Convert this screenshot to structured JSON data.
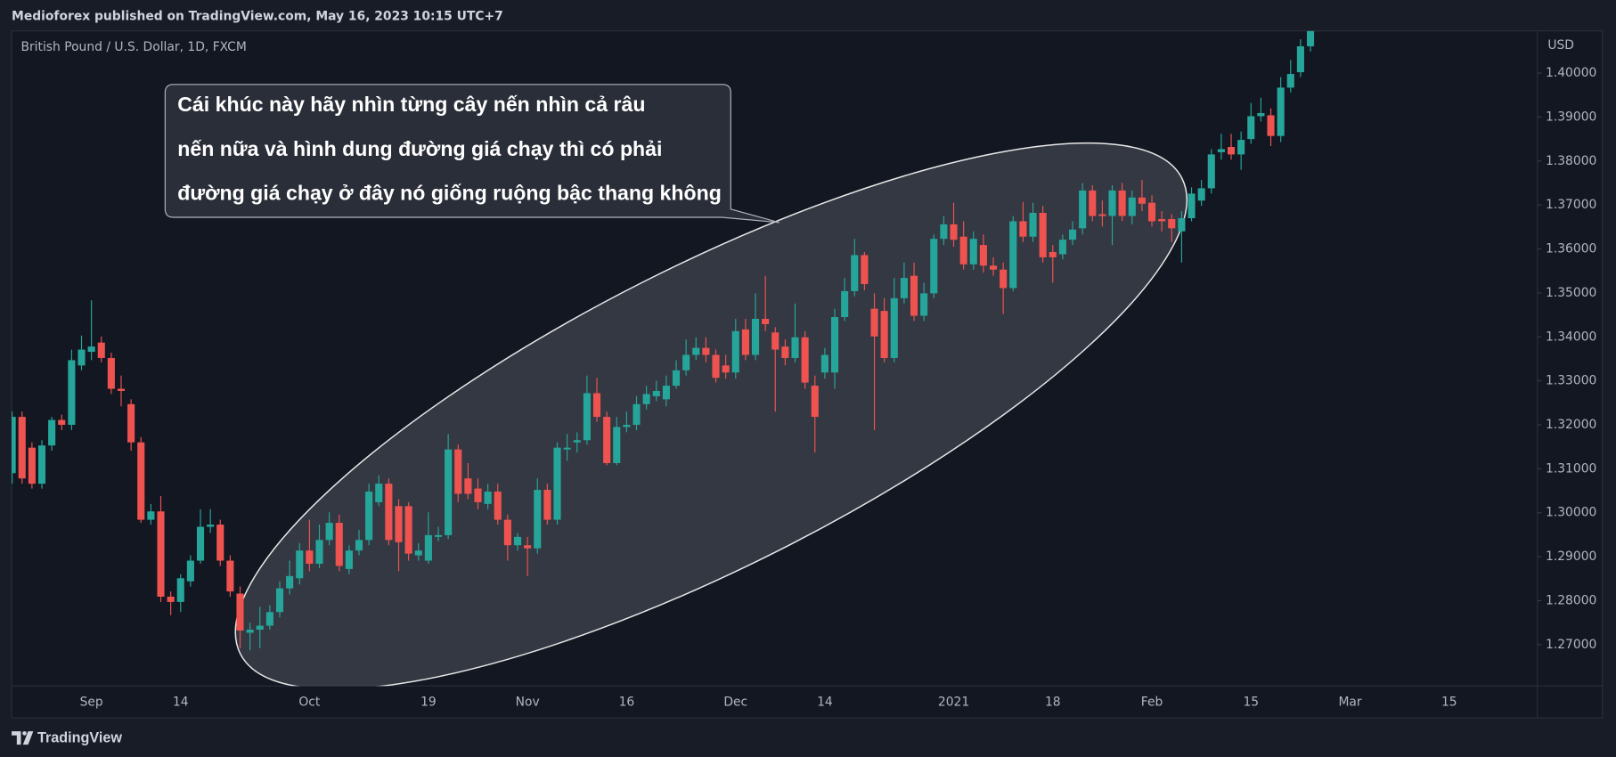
{
  "header": {
    "title": "Medioforex published on TradingView.com, May 16, 2023 10:15 UTC+7"
  },
  "chart_data": {
    "type": "candlestick",
    "title": "British Pound / U.S. Dollar, 1D, FXCM",
    "y_axis_label": "USD",
    "up_color": "#26a69a",
    "down_color": "#ef5350",
    "ylim": [
      1.2606,
      1.4096
    ],
    "yticks": [
      {
        "value": 1.27,
        "label": "1.27000"
      },
      {
        "value": 1.28,
        "label": "1.28000"
      },
      {
        "value": 1.29,
        "label": "1.29000"
      },
      {
        "value": 1.3,
        "label": "1.30000"
      },
      {
        "value": 1.31,
        "label": "1.31000"
      },
      {
        "value": 1.32,
        "label": "1.32000"
      },
      {
        "value": 1.33,
        "label": "1.33000"
      },
      {
        "value": 1.34,
        "label": "1.34000"
      },
      {
        "value": 1.35,
        "label": "1.35000"
      },
      {
        "value": 1.36,
        "label": "1.36000"
      },
      {
        "value": 1.37,
        "label": "1.37000"
      },
      {
        "value": 1.38,
        "label": "1.38000"
      },
      {
        "value": 1.39,
        "label": "1.39000"
      },
      {
        "value": 1.4,
        "label": "1.40000"
      }
    ],
    "categories": [
      null,
      null,
      null,
      null,
      null,
      null,
      null,
      null,
      "Sep",
      null,
      null,
      null,
      null,
      null,
      null,
      null,
      null,
      "14",
      null,
      null,
      null,
      null,
      null,
      null,
      null,
      null,
      null,
      null,
      null,
      null,
      "Oct",
      null,
      null,
      null,
      null,
      null,
      null,
      null,
      null,
      null,
      null,
      null,
      "19",
      null,
      null,
      null,
      null,
      null,
      null,
      null,
      null,
      null,
      "Nov",
      null,
      null,
      null,
      null,
      null,
      null,
      null,
      null,
      null,
      "16",
      null,
      null,
      null,
      null,
      null,
      null,
      null,
      null,
      null,
      null,
      "Dec",
      null,
      null,
      null,
      null,
      null,
      null,
      null,
      null,
      "14",
      null,
      null,
      null,
      null,
      null,
      null,
      null,
      null,
      null,
      null,
      null,
      null,
      "2021",
      null,
      null,
      null,
      null,
      null,
      null,
      null,
      null,
      null,
      "18",
      null,
      null,
      null,
      null,
      null,
      null,
      null,
      null,
      null,
      "Feb",
      null,
      null,
      null,
      null,
      null,
      null,
      null,
      null,
      null,
      "15",
      null,
      null,
      null,
      null,
      null,
      null,
      null,
      null,
      null,
      "Mar",
      null,
      null,
      null,
      null,
      null,
      null,
      null,
      null,
      null,
      "15"
    ],
    "open": [
      1.309,
      1.3218,
      1.3148,
      1.3066,
      1.3153,
      1.3211,
      1.32,
      1.3335,
      1.3366,
      1.3387,
      1.3352,
      1.3282,
      1.3247,
      1.316,
      1.2984,
      1.3003,
      1.2809,
      1.2797,
      1.2844,
      1.2891,
      1.2968,
      1.2973,
      1.2891,
      1.2816,
      1.2727,
      1.2734,
      1.2743,
      1.2774,
      1.2828,
      1.2851,
      1.2914,
      1.2884,
      1.2938,
      1.2977,
      1.2872,
      1.2914,
      1.2938,
      1.3024,
      1.3066,
      1.3015,
      1.3015,
      1.2903,
      1.2891,
      1.2945,
      1.2949,
      1.3144,
      1.3078,
      1.3055,
      1.302,
      1.3048,
      1.2984,
      1.2926,
      1.2926,
      1.2919,
      1.3052,
      1.2984,
      1.3144,
      1.316,
      1.3165,
      1.3272,
      1.3218,
      1.3113,
      1.3195,
      1.32,
      1.3247,
      1.3265,
      1.3258,
      1.3289,
      1.3324,
      1.3359,
      1.3375,
      1.3359,
      1.3335,
      1.3319,
      1.3417,
      1.3359,
      1.3441,
      1.341,
      1.3378,
      1.3352,
      1.3399,
      1.3289,
      1.3319,
      1.3319,
      1.3445,
      1.3504,
      1.3586,
      1.3464,
      1.3459,
      1.3352,
      1.3488,
      1.3539,
      1.3448,
      1.3499,
      1.3623,
      1.3656,
      1.3628,
      1.3565,
      1.3609,
      1.3562,
      1.3553,
      1.3511,
      1.3663,
      1.3628,
      1.3682,
      1.3593,
      1.3588,
      1.3621,
      1.3647,
      1.3733,
      1.3679,
      1.3675,
      1.3733,
      1.3675,
      1.3717,
      1.3705,
      1.3668,
      1.3668,
      1.364,
      1.367,
      1.371,
      1.3738,
      1.382,
      1.3832,
      1.3815,
      1.385,
      1.3902,
      1.3904,
      1.3857,
      1.3967,
      1.4002,
      1.4061,
      null,
      null,
      null,
      null,
      null,
      null,
      null,
      null,
      null,
      null,
      null,
      null,
      null,
      null
    ],
    "high": [
      1.323,
      1.323,
      1.316,
      1.3165,
      1.3218,
      1.3223,
      1.3371,
      1.3403,
      1.3483,
      1.3401,
      1.3364,
      1.3312,
      1.3258,
      1.3172,
      1.302,
      1.3038,
      1.2821,
      1.286,
      1.2903,
      1.3008,
      1.3008,
      1.2984,
      1.2903,
      1.2832,
      1.275,
      1.2786,
      1.279,
      1.2844,
      1.2891,
      1.2931,
      1.2984,
      1.2973,
      1.3001,
      1.2996,
      1.2926,
      1.2961,
      1.3066,
      1.3085,
      1.3078,
      1.3031,
      1.3024,
      1.2931,
      1.3001,
      1.2968,
      1.3179,
      1.3155,
      1.3113,
      1.3078,
      1.3066,
      1.3066,
      1.2996,
      1.2954,
      1.2945,
      1.3078,
      1.3066,
      1.316,
      1.3179,
      1.3183,
      1.3312,
      1.3307,
      1.323,
      1.3218,
      1.323,
      1.3265,
      1.3289,
      1.33,
      1.3312,
      1.3347,
      1.3394,
      1.3399,
      1.3399,
      1.3371,
      1.3359,
      1.3441,
      1.3441,
      1.3499,
      1.3539,
      1.3422,
      1.3394,
      1.3476,
      1.3413,
      1.3312,
      1.3375,
      1.3464,
      1.3534,
      1.3623,
      1.3593,
      1.3499,
      1.3488,
      1.3534,
      1.3569,
      1.3569,
      1.3523,
      1.3633,
      1.3675,
      1.3705,
      1.3663,
      1.364,
      1.3633,
      1.3581,
      1.3569,
      1.3675,
      1.3707,
      1.3705,
      1.3698,
      1.3609,
      1.3633,
      1.3663,
      1.375,
      1.3745,
      1.371,
      1.3745,
      1.375,
      1.3733,
      1.3757,
      1.3722,
      1.3686,
      1.3679,
      1.3686,
      1.374,
      1.3757,
      1.3827,
      1.3862,
      1.3862,
      1.3867,
      1.3932,
      1.3944,
      1.392,
      1.3991,
      1.403,
      1.4077,
      1.4101,
      null,
      null,
      null,
      null,
      null,
      null,
      null,
      null,
      null,
      null,
      null,
      null,
      null,
      null
    ],
    "low": [
      1.3066,
      1.3066,
      1.3055,
      1.3055,
      1.3141,
      1.3188,
      1.3188,
      1.3324,
      1.3347,
      1.3342,
      1.327,
      1.3242,
      1.3141,
      1.2977,
      1.2973,
      1.2797,
      1.2767,
      1.2774,
      1.2832,
      1.2884,
      1.2954,
      1.2879,
      1.2809,
      1.2692,
      1.2687,
      1.2692,
      1.2734,
      1.2762,
      1.2814,
      1.2837,
      1.2867,
      1.2874,
      1.2926,
      1.2867,
      1.286,
      1.2903,
      1.2926,
      1.3015,
      1.2926,
      1.2867,
      1.2891,
      1.2891,
      1.2884,
      1.2935,
      1.294,
      1.3024,
      1.3031,
      1.3008,
      1.3008,
      1.2973,
      1.2891,
      1.2914,
      1.2856,
      1.2907,
      1.2973,
      1.2973,
      1.3118,
      1.3137,
      1.3155,
      1.3207,
      1.3108,
      1.3108,
      1.3183,
      1.3188,
      1.3235,
      1.3254,
      1.3242,
      1.3282,
      1.3312,
      1.3347,
      1.3342,
      1.3296,
      1.3305,
      1.3305,
      1.3347,
      1.3347,
      1.3413,
      1.323,
      1.3335,
      1.3342,
      1.3282,
      1.3137,
      1.3305,
      1.3282,
      1.3436,
      1.3492,
      1.3506,
      1.3188,
      1.3342,
      1.3342,
      1.3476,
      1.3436,
      1.3436,
      1.3488,
      1.3609,
      1.3605,
      1.3553,
      1.3553,
      1.3546,
      1.3539,
      1.3452,
      1.3504,
      1.3616,
      1.3616,
      1.3569,
      1.3523,
      1.3576,
      1.3609,
      1.3633,
      1.3663,
      1.3651,
      1.3609,
      1.3663,
      1.3656,
      1.3686,
      1.3651,
      1.364,
      1.3616,
      1.3569,
      1.3663,
      1.3698,
      1.3726,
      1.3803,
      1.3803,
      1.378,
      1.3839,
      1.389,
      1.3834,
      1.3843,
      1.3956,
      1.3991,
      1.4049,
      null,
      null,
      null,
      null,
      null,
      null,
      null,
      null,
      null,
      null,
      null,
      null,
      null,
      null
    ],
    "close": [
      1.3218,
      1.3078,
      1.3066,
      1.3153,
      1.3211,
      1.32,
      1.3347,
      1.3371,
      1.3378,
      1.3352,
      1.3282,
      1.3277,
      1.316,
      1.2984,
      1.3003,
      1.2809,
      1.2797,
      1.2851,
      1.2891,
      1.2968,
      1.2973,
      1.2891,
      1.2821,
      1.2732,
      1.2734,
      1.2743,
      1.2774,
      1.2828,
      1.2856,
      1.2914,
      1.2884,
      1.2938,
      1.2977,
      1.2879,
      1.2914,
      1.2938,
      1.3048,
      1.3066,
      1.2938,
      1.2933,
      1.2907,
      1.2914,
      1.2949,
      1.2949,
      1.3144,
      1.3043,
      1.3043,
      1.3024,
      1.3048,
      1.2984,
      1.2926,
      1.2945,
      1.2919,
      1.3052,
      1.2984,
      1.3148,
      1.3148,
      1.3165,
      1.3272,
      1.3218,
      1.3113,
      1.3195,
      1.32,
      1.3247,
      1.327,
      1.3277,
      1.3289,
      1.3324,
      1.3359,
      1.3375,
      1.3359,
      1.3307,
      1.3319,
      1.3413,
      1.3359,
      1.3441,
      1.3429,
      1.3371,
      1.3352,
      1.3399,
      1.3296,
      1.3218,
      1.3359,
      1.3445,
      1.3504,
      1.3586,
      1.352,
      1.3401,
      1.3352,
      1.3488,
      1.3534,
      1.3448,
      1.3499,
      1.3623,
      1.3656,
      1.3621,
      1.3565,
      1.3623,
      1.3562,
      1.3553,
      1.3511,
      1.3663,
      1.3628,
      1.3682,
      1.3581,
      1.3581,
      1.3621,
      1.3644,
      1.3733,
      1.3675,
      1.3675,
      1.3733,
      1.3675,
      1.3717,
      1.3703,
      1.3663,
      1.3663,
      1.3647,
      1.367,
      1.3726,
      1.3738,
      1.3815,
      1.3827,
      1.3815,
      1.3848,
      1.3902,
      1.3909,
      1.3857,
      1.3967,
      1.3998,
      1.4061,
      1.4096,
      null,
      null,
      null,
      null,
      null,
      null,
      null,
      null,
      null,
      null,
      null,
      null,
      null,
      null
    ],
    "annotations": [
      "Cái khúc này hãy nhìn từng cây nến nhìn cả râu",
      "nến nữa và hình dung đường giá chạy thì có phải",
      "đường giá chạy ở đây nó giống ruộng bậc thang không"
    ]
  },
  "footer": {
    "brand": "TradingView"
  }
}
